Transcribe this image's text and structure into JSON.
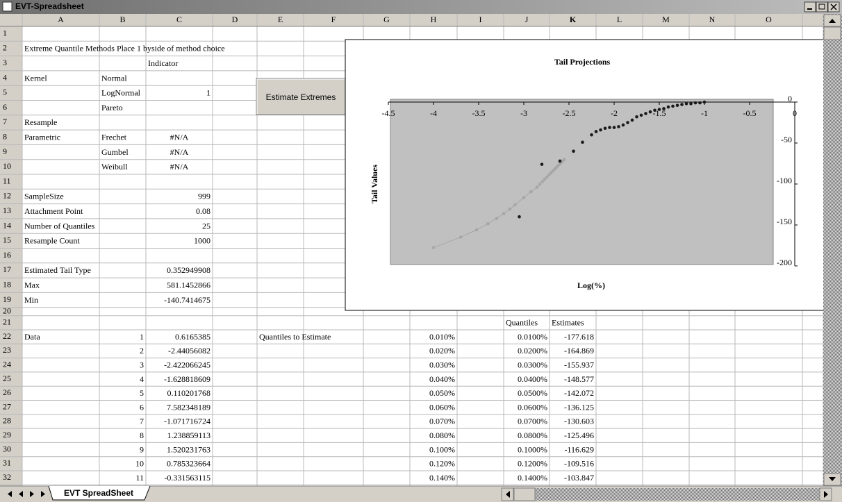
{
  "window": {
    "title": "EVT-Spreadsheet"
  },
  "button": {
    "label": "Estimate Extremes"
  },
  "sheet_tab": "EVT SpreadSheet",
  "sheet": {
    "columns": [
      "A",
      "B",
      "C",
      "D",
      "E",
      "F",
      "G",
      "H",
      "I",
      "J",
      "K",
      "L",
      "M",
      "N",
      "O"
    ],
    "rows": [
      {
        "n": 1
      },
      {
        "n": 2,
        "cells": {
          "A": "Extreme Quantile Methods Place 1 byside of method choice"
        }
      },
      {
        "n": 3,
        "cells": {
          "C": "Indicator"
        }
      },
      {
        "n": 4,
        "cells": {
          "A": "Kernel",
          "B": "Normal"
        }
      },
      {
        "n": 5,
        "cells": {
          "B": "LogNormal",
          "C": "1"
        }
      },
      {
        "n": 6,
        "cells": {
          "B": "Pareto"
        }
      },
      {
        "n": 7,
        "cells": {
          "A": "Resample"
        }
      },
      {
        "n": 8,
        "cells": {
          "A": "Parametric",
          "B": "Frechet",
          "C": "#N/A"
        }
      },
      {
        "n": 9,
        "cells": {
          "B": "Gumbel",
          "C": "#N/A"
        }
      },
      {
        "n": 10,
        "cells": {
          "B": "Weibull",
          "C": "#N/A"
        }
      },
      {
        "n": 11
      },
      {
        "n": 12,
        "cells": {
          "A": "SampleSize",
          "C": "999"
        }
      },
      {
        "n": 13,
        "cells": {
          "A": "Attachment Point",
          "C": "0.08"
        }
      },
      {
        "n": 14,
        "cells": {
          "A": "Number of Quantiles",
          "C": "25"
        }
      },
      {
        "n": 15,
        "cells": {
          "A": "Resample Count",
          "C": "1000"
        }
      },
      {
        "n": 16
      },
      {
        "n": 17,
        "cells": {
          "A": "Estimated Tail Type",
          "C": "0.352949908"
        }
      },
      {
        "n": 18,
        "cells": {
          "A": "Max",
          "C": "581.1452866"
        }
      },
      {
        "n": 19,
        "cells": {
          "A": "Min",
          "C": "-140.7414675"
        }
      },
      {
        "n": 20
      },
      {
        "n": 21,
        "cells": {
          "J": "Quantiles",
          "K": "Estimates"
        }
      },
      {
        "n": 22,
        "cells": {
          "A": "Data",
          "B": "1",
          "C": "0.6165385",
          "E": "Quantiles to Estimate",
          "H": "0.010%",
          "J": "0.0100%",
          "K": "-177.618"
        }
      },
      {
        "n": 23,
        "cells": {
          "B": "2",
          "C": "-2.44056082",
          "H": "0.020%",
          "J": "0.0200%",
          "K": "-164.869"
        }
      },
      {
        "n": 24,
        "cells": {
          "B": "3",
          "C": "-2.422066245",
          "H": "0.030%",
          "J": "0.0300%",
          "K": "-155.937"
        }
      },
      {
        "n": 25,
        "cells": {
          "B": "4",
          "C": "-1.628818609",
          "H": "0.040%",
          "J": "0.0400%",
          "K": "-148.577"
        }
      },
      {
        "n": 26,
        "cells": {
          "B": "5",
          "C": "0.110201768",
          "H": "0.050%",
          "J": "0.0500%",
          "K": "-142.072"
        }
      },
      {
        "n": 27,
        "cells": {
          "B": "6",
          "C": "7.582348189",
          "H": "0.060%",
          "J": "0.0600%",
          "K": "-136.125"
        }
      },
      {
        "n": 28,
        "cells": {
          "B": "7",
          "C": "-1.071716724",
          "H": "0.070%",
          "J": "0.0700%",
          "K": "-130.603"
        }
      },
      {
        "n": 29,
        "cells": {
          "B": "8",
          "C": "1.238859113",
          "H": "0.080%",
          "J": "0.0800%",
          "K": "-125.496"
        }
      },
      {
        "n": 30,
        "cells": {
          "B": "9",
          "C": "1.520231763",
          "H": "0.100%",
          "J": "0.1000%",
          "K": "-116.629"
        }
      },
      {
        "n": 31,
        "cells": {
          "B": "10",
          "C": "0.785323664",
          "H": "0.120%",
          "J": "0.1200%",
          "K": "-109.516"
        }
      },
      {
        "n": 32,
        "cells": {
          "B": "11",
          "C": "-0.331563115",
          "H": "0.140%",
          "J": "0.1400%",
          "K": "-103.847"
        }
      }
    ]
  },
  "chart_data": {
    "type": "scatter",
    "title": "Tail Projections",
    "x_label": "Log(%)",
    "y_label": "Tail Values",
    "xlim": [
      -4.5,
      0
    ],
    "xticks": [
      -4.5,
      -4,
      -3.5,
      -3,
      -2.5,
      -2,
      -1.5,
      -1,
      -0.5,
      0
    ],
    "ylim": [
      -200,
      0
    ],
    "yticks": [
      0,
      -50,
      -100,
      -150,
      -200
    ],
    "plot_background": "#c0c0c0",
    "series": [
      {
        "color": "#a6a6a6",
        "line": true,
        "x": [
          -4,
          -3.699,
          -3.523,
          -3.398,
          -3.301,
          -3.222,
          -3.155,
          -3.097,
          -3,
          -2.921,
          -2.854,
          -2.824,
          -2.796,
          -2.77,
          -2.745,
          -2.721,
          -2.699,
          -2.678,
          -2.658,
          -2.638,
          -2.62,
          -2.602,
          -2.585,
          -2.569,
          -2.553
        ],
        "values": [
          -177.618,
          -164.869,
          -155.937,
          -148.577,
          -142.072,
          -136.125,
          -130.603,
          -125.496,
          -116.629,
          -109.516,
          -103.847,
          -100.5,
          -97.3,
          -94.4,
          -91.6,
          -88.9,
          -86.4,
          -84.1,
          -81.8,
          -79.6,
          -77.6,
          -75.6,
          -73.7,
          -71.9,
          -70.1
        ]
      },
      {
        "color": "#1a1a1a",
        "line": false,
        "x": [
          -3.05,
          -2.8,
          -2.6,
          -2.45,
          -2.35,
          -2.25,
          -2.2,
          -2.15,
          -2.1,
          -2.05,
          -2,
          -1.95,
          -1.9,
          -1.85,
          -1.8,
          -1.75,
          -1.7,
          -1.65,
          -1.6,
          -1.55,
          -1.5,
          -1.45,
          -1.4,
          -1.35,
          -1.3,
          -1.25,
          -1.2,
          -1.15,
          -1.1,
          -1.05,
          -1
        ],
        "values": [
          -140,
          -76,
          -72,
          -60,
          -49,
          -40,
          -36,
          -34,
          -32,
          -31,
          -31,
          -30,
          -28,
          -25,
          -22,
          -18,
          -16,
          -14,
          -12,
          -10,
          -9,
          -8,
          -6,
          -5,
          -4,
          -3,
          -2,
          -2,
          -1,
          -1,
          0
        ]
      }
    ]
  }
}
